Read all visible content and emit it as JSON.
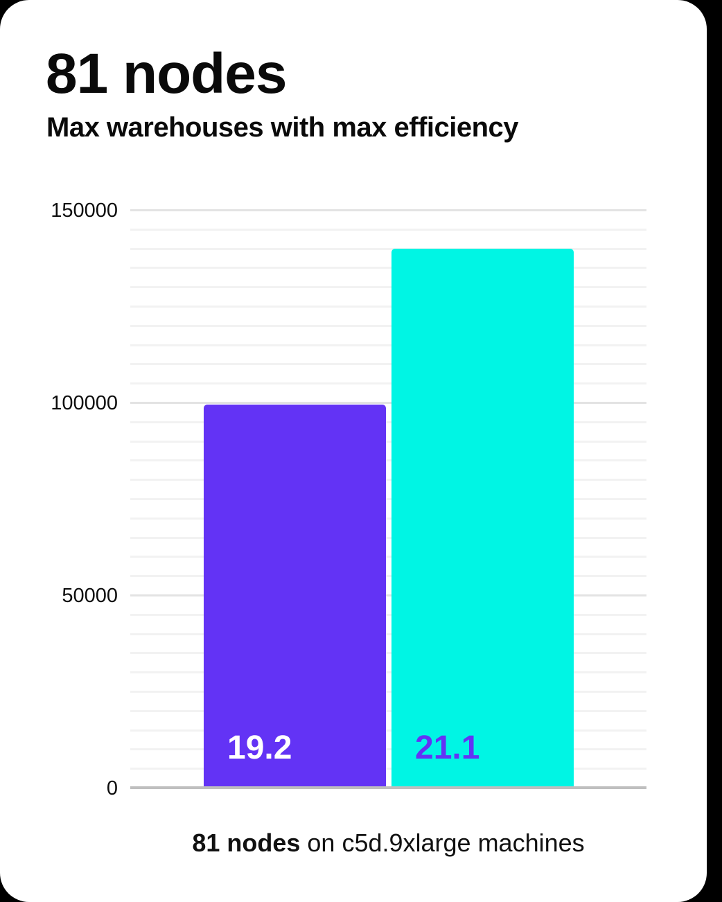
{
  "page": {
    "background_color": "#000000",
    "card_color": "#ffffff"
  },
  "header": {
    "title": "81 nodes",
    "subtitle": "Max warehouses with max efficiency"
  },
  "chart_data": {
    "type": "bar",
    "title": "81 nodes",
    "subtitle": "Max warehouses with max efficiency",
    "bars": [
      {
        "label": "19.2",
        "value": 99500,
        "color": "#6333f5",
        "label_color": "#ffffff"
      },
      {
        "label": "21.1",
        "value": 140000,
        "color": "#00f5e4",
        "label_color": "#6333f5"
      }
    ],
    "ylim": [
      0,
      150000
    ],
    "yticks": [
      0,
      50000,
      100000,
      150000
    ],
    "minor_gridline_step": 5000,
    "grid": "horizontal",
    "legend": "none",
    "xlabel": "",
    "ylabel": "",
    "major_gridline_color": "#e3e3e3",
    "minor_gridline_color": "#f2f2f2",
    "baseline_color": "#bfbfbf",
    "tick_label_color": "#0d0d0d"
  },
  "caption": {
    "bold": "81 nodes",
    "rest": " on c5d.9xlarge machines"
  }
}
